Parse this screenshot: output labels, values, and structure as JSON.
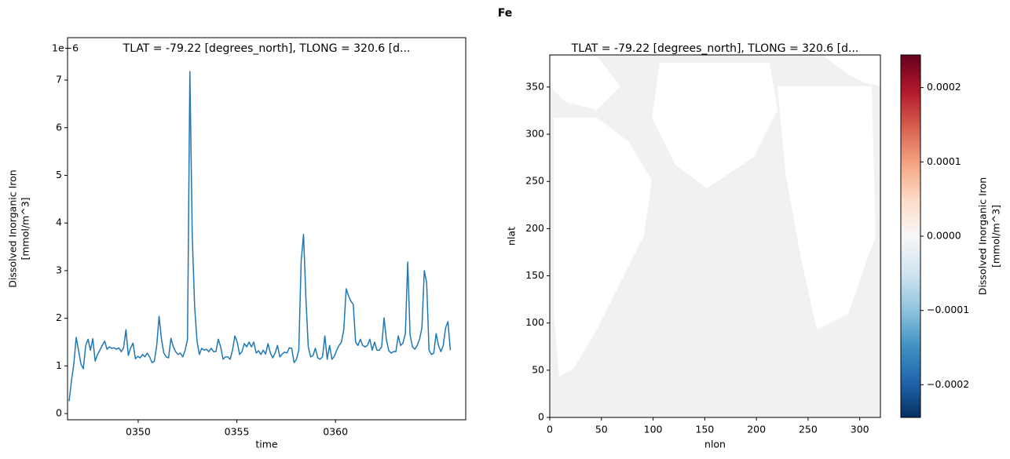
{
  "title": "Fe",
  "chart_data": [
    {
      "type": "line",
      "title": "TLAT = -79.22 [degrees_north], TLONG = 320.6 [d...",
      "xlabel": "time",
      "ylabel": [
        "Dissolved Inorganic Iron",
        "[mmol/m^3]"
      ],
      "offset_label": "1e−6",
      "color": "#1f77b4",
      "x": [
        346.5,
        346.62,
        346.74,
        346.86,
        346.98,
        347.1,
        347.22,
        347.34,
        347.46,
        347.58,
        347.7,
        347.82,
        347.94,
        348.06,
        348.18,
        348.3,
        348.42,
        348.54,
        348.66,
        348.78,
        348.9,
        349.02,
        349.14,
        349.26,
        349.38,
        349.5,
        349.62,
        349.74,
        349.86,
        349.98,
        350.1,
        350.22,
        350.34,
        350.46,
        350.58,
        350.7,
        350.82,
        350.94,
        351.06,
        351.18,
        351.3,
        351.42,
        351.54,
        351.66,
        351.78,
        351.9,
        352.02,
        352.14,
        352.26,
        352.38,
        352.5,
        352.62,
        352.74,
        352.86,
        352.98,
        353.1,
        353.22,
        353.34,
        353.46,
        353.58,
        353.7,
        353.82,
        353.94,
        354.06,
        354.18,
        354.3,
        354.42,
        354.54,
        354.66,
        354.78,
        354.9,
        355.02,
        355.14,
        355.26,
        355.38,
        355.5,
        355.62,
        355.74,
        355.86,
        355.98,
        356.1,
        356.22,
        356.34,
        356.46,
        356.58,
        356.7,
        356.82,
        356.94,
        357.06,
        357.18,
        357.3,
        357.42,
        357.54,
        357.66,
        357.78,
        357.9,
        358.02,
        358.14,
        358.26,
        358.38,
        358.5,
        358.62,
        358.74,
        358.86,
        358.98,
        359.1,
        359.22,
        359.34,
        359.46,
        359.58,
        359.7,
        359.82,
        359.94,
        360.06,
        360.18,
        360.3,
        360.42,
        360.54,
        360.66,
        360.78,
        360.9,
        361.02,
        361.14,
        361.26,
        361.38,
        361.5,
        361.62,
        361.74,
        361.86,
        361.98,
        362.1,
        362.22,
        362.34,
        362.46,
        362.58,
        362.7,
        362.82,
        362.94,
        363.06,
        363.18,
        363.3,
        363.42,
        363.54,
        363.66,
        363.78,
        363.9,
        364.02,
        364.14,
        364.26,
        364.38,
        364.5,
        364.62,
        364.74,
        364.86,
        364.98,
        365.1,
        365.22,
        365.34,
        365.46,
        365.58,
        365.7,
        365.82
      ],
      "values": [
        0.26,
        0.69,
        1.05,
        1.6,
        1.32,
        1.04,
        0.94,
        1.43,
        1.56,
        1.33,
        1.57,
        1.1,
        1.24,
        1.33,
        1.43,
        1.52,
        1.35,
        1.4,
        1.37,
        1.38,
        1.35,
        1.38,
        1.3,
        1.38,
        1.76,
        1.22,
        1.38,
        1.48,
        1.15,
        1.2,
        1.17,
        1.24,
        1.19,
        1.27,
        1.19,
        1.07,
        1.1,
        1.43,
        2.04,
        1.56,
        1.27,
        1.19,
        1.17,
        1.58,
        1.4,
        1.3,
        1.24,
        1.27,
        1.19,
        1.33,
        1.56,
        7.18,
        3.74,
        2.26,
        1.53,
        1.24,
        1.37,
        1.33,
        1.35,
        1.3,
        1.37,
        1.3,
        1.3,
        1.56,
        1.4,
        1.14,
        1.19,
        1.19,
        1.14,
        1.33,
        1.63,
        1.5,
        1.24,
        1.3,
        1.47,
        1.4,
        1.5,
        1.4,
        1.5,
        1.27,
        1.32,
        1.24,
        1.33,
        1.25,
        1.47,
        1.27,
        1.17,
        1.27,
        1.43,
        1.19,
        1.25,
        1.29,
        1.27,
        1.38,
        1.37,
        1.07,
        1.14,
        1.33,
        3.2,
        3.76,
        2.42,
        1.4,
        1.19,
        1.22,
        1.37,
        1.17,
        1.14,
        1.19,
        1.63,
        1.14,
        1.43,
        1.14,
        1.2,
        1.33,
        1.43,
        1.5,
        1.76,
        2.62,
        2.47,
        2.36,
        2.29,
        1.5,
        1.43,
        1.56,
        1.43,
        1.4,
        1.43,
        1.56,
        1.33,
        1.5,
        1.33,
        1.33,
        1.4,
        2.01,
        1.55,
        1.32,
        1.27,
        1.3,
        1.3,
        1.63,
        1.43,
        1.48,
        1.68,
        3.18,
        1.65,
        1.4,
        1.35,
        1.43,
        1.56,
        1.8,
        3.0,
        2.75,
        1.33,
        1.24,
        1.27,
        1.68,
        1.43,
        1.3,
        1.43,
        1.8,
        1.93,
        1.33
      ],
      "xlim": [
        346.42,
        366.6
      ],
      "xticks": [
        {
          "value": 350,
          "label": "0350"
        },
        {
          "value": 355,
          "label": "0355"
        },
        {
          "value": 360,
          "label": "0360"
        }
      ],
      "ylim": [
        -0.13,
        7.89
      ],
      "yticks": [
        0,
        1,
        2,
        3,
        4,
        5,
        6,
        7
      ]
    },
    {
      "type": "heatmap",
      "title": "TLAT = -79.22 [degrees_north], TLONG = 320.6 [d...",
      "xlabel": "nlon",
      "ylabel": "nlat",
      "field_color": "#f2f1f1",
      "xlim": [
        0,
        320
      ],
      "xticks": [
        0,
        50,
        100,
        150,
        200,
        250,
        300
      ],
      "ylim": [
        0,
        384
      ],
      "yticks": [
        0,
        50,
        100,
        150,
        200,
        250,
        300,
        350
      ],
      "colorbar": {
        "label": [
          "Dissolved Inorganic Iron",
          "[mmol/m^3]"
        ],
        "colormap": [
          "#053061",
          "#2166ac",
          "#4393c3",
          "#92c5de",
          "#d1e5f0",
          "#f7f7f7",
          "#fddbc7",
          "#f4a582",
          "#d6604d",
          "#b2182b",
          "#67001f"
        ],
        "lim": [
          -0.000244,
          0.000244
        ],
        "ticks": [
          {
            "value": -0.0002,
            "label": "−0.0002"
          },
          {
            "value": -0.0001,
            "label": "−0.0001"
          },
          {
            "value": 0,
            "label": "0.0000"
          },
          0.0001,
          0.0002
        ]
      }
    }
  ]
}
